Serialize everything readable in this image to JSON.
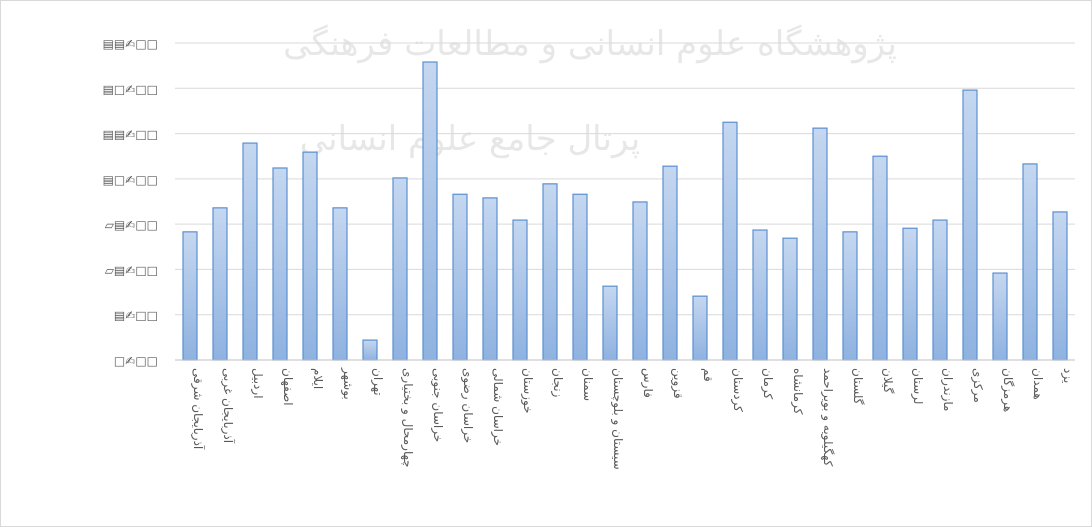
{
  "chart_data": {
    "type": "bar",
    "watermark": [
      "پژوهشگاه علوم انسانی و مطالعات فرهنگی",
      "پرتال جامع علوم انسانی"
    ],
    "categories": [
      "آذربایجان شرقی",
      "آذربایجان غربی",
      "اردبیل",
      "اصفهان",
      "ایلام",
      "بوشهر",
      "تهران",
      "چهارمحال و بختیاری",
      "خراسان جنوبی",
      "خراسان رضوی",
      "خراسان شمالی",
      "خوزستان",
      "زنجان",
      "سمنان",
      "سیستان و بلوچستان",
      "فارس",
      "قزوین",
      "قم",
      "کردستان",
      "کرمان",
      "کرمانشاه",
      "کهگیلویه و بویراحمد",
      "گلستان",
      "گیلان",
      "لرستان",
      "مازندران",
      "مرکزی",
      "هرمزگان",
      "همدان",
      "یزد"
    ],
    "values": [
      2.83,
      3.36,
      4.79,
      4.24,
      4.59,
      3.36,
      0.44,
      4.02,
      6.58,
      3.66,
      3.58,
      3.09,
      3.89,
      3.66,
      1.63,
      3.49,
      4.28,
      1.41,
      5.25,
      2.87,
      2.69,
      5.12,
      2.83,
      4.5,
      2.91,
      3.09,
      5.96,
      1.92,
      4.33,
      3.27
    ],
    "color": "#a9c4e8",
    "ylim": [
      0,
      7
    ],
    "yticks": [
      {
        "value": 0,
        "label": "□✍□□"
      },
      {
        "value": 1,
        "label": "▤✍□□"
      },
      {
        "value": 2,
        "label": "▱▤✍□□"
      },
      {
        "value": 3,
        "label": "▱▤✍□□"
      },
      {
        "value": 4,
        "label": "▤□✍□□"
      },
      {
        "value": 5,
        "label": "▤▤✍□□"
      },
      {
        "value": 6,
        "label": "▤□✍□□"
      },
      {
        "value": 7,
        "label": "▤▤✍□□"
      }
    ],
    "grid": true
  }
}
